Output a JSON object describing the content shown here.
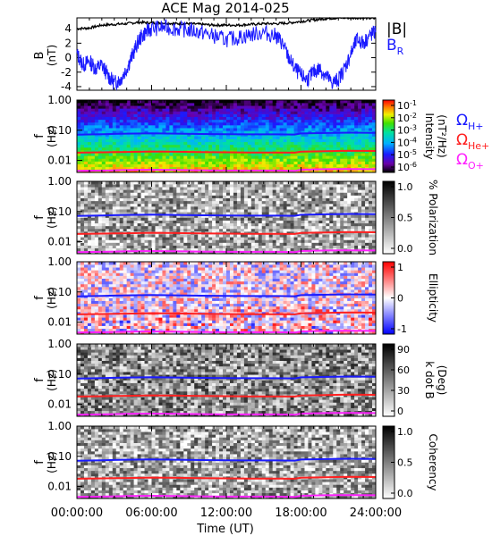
{
  "title": "ACE Mag 2014-025",
  "chart_data": [
    {
      "type": "line",
      "panel": "magnetic-field",
      "ylabel": "B",
      "yunit": "(nT)",
      "ylim": [
        -4.5,
        5.5
      ],
      "yticks": [
        -4,
        -2,
        0,
        2,
        4
      ],
      "xlim": [
        0,
        24
      ],
      "legend": [
        {
          "label": "|B|",
          "color": "#000000"
        },
        {
          "label": "B",
          "sub": "R",
          "color": "#1a1aff"
        }
      ],
      "series": [
        {
          "name": "|B|",
          "color": "#000000",
          "x": [
            0,
            1,
            2,
            3,
            4,
            5,
            6,
            7,
            8,
            9,
            10,
            11,
            12,
            13,
            14,
            15,
            16,
            17,
            18,
            19,
            20,
            21,
            22,
            23,
            24
          ],
          "values": [
            4.0,
            4.1,
            4.5,
            4.6,
            4.7,
            4.9,
            4.8,
            4.8,
            4.7,
            4.7,
            4.6,
            4.5,
            4.5,
            4.5,
            4.6,
            4.7,
            4.7,
            4.8,
            5.0,
            5.2,
            5.4,
            5.5,
            5.5,
            5.5,
            5.4
          ]
        },
        {
          "name": "B_R",
          "color": "#1a1aff",
          "x": [
            0,
            0.5,
            1,
            1.5,
            2,
            2.5,
            3,
            3.5,
            4,
            4.5,
            5,
            5.5,
            6,
            7,
            8,
            9,
            10,
            11,
            12,
            13,
            14,
            15,
            16,
            16.5,
            17,
            17.5,
            18,
            18.5,
            19,
            19.5,
            20,
            20.5,
            21,
            21.5,
            22,
            22.5,
            23,
            23.5,
            24
          ],
          "values": [
            0.5,
            -1.0,
            -0.5,
            -1.5,
            -1.0,
            -2.5,
            -3.5,
            -3.0,
            -1.5,
            0.5,
            2.5,
            3.5,
            4.0,
            4.2,
            4.0,
            3.8,
            3.5,
            3.0,
            2.5,
            2.8,
            3.2,
            3.5,
            3.0,
            2.0,
            0.0,
            -1.5,
            -2.5,
            -3.0,
            -2.0,
            -1.5,
            -2.5,
            -3.5,
            -3.0,
            -1.5,
            0.5,
            2.5,
            2.0,
            3.0,
            3.5
          ]
        }
      ]
    },
    {
      "type": "heatmap",
      "panel": "intensity",
      "ylabel": "f",
      "yunit": "(Hz)",
      "yscale": "log",
      "ylim": [
        0.004,
        1.0
      ],
      "yticks": [
        "1.00",
        "0.10",
        "0.01"
      ],
      "colorbar_label": "Intensity",
      "colorbar_unit": "(nT²/Hz)",
      "colorbar_ticks": [
        "10",
        "10",
        "10",
        "10",
        "10",
        "10"
      ],
      "colorbar_exponents": [
        "-1",
        "-2",
        "-3",
        "-4",
        "-5",
        "-6"
      ],
      "colormap": "rainbow",
      "legend": [
        {
          "label": "Ω",
          "sub": "H+",
          "color": "#1a1aff"
        },
        {
          "label": "Ω",
          "sub": "He+",
          "color": "#ff2020"
        },
        {
          "label": "Ω",
          "sub": "O+",
          "color": "#ff20ff"
        }
      ]
    },
    {
      "type": "heatmap",
      "panel": "polarization",
      "ylabel": "f",
      "yunit": "(Hz)",
      "yscale": "log",
      "colorbar_label": "% Polarization",
      "colorbar_ticks": [
        "1.0",
        "0.5",
        "0.0"
      ],
      "colormap": "grayscale"
    },
    {
      "type": "heatmap",
      "panel": "ellipticity",
      "ylabel": "f",
      "yunit": "(Hz)",
      "yscale": "log",
      "colorbar_label": "Ellipticity",
      "colorbar_ticks": [
        "1",
        "0",
        "-1"
      ],
      "colormap": "blue-white-red"
    },
    {
      "type": "heatmap",
      "panel": "k-dot-b",
      "ylabel": "f",
      "yunit": "(Hz)",
      "yscale": "log",
      "colorbar_label": "k dot B",
      "colorbar_unit": "(Deg)",
      "colorbar_ticks": [
        "90",
        "60",
        "30",
        "0"
      ],
      "colormap": "grayscale"
    },
    {
      "type": "heatmap",
      "panel": "coherency",
      "ylabel": "f",
      "yunit": "(Hz)",
      "yscale": "log",
      "colorbar_label": "Coherency",
      "colorbar_ticks": [
        "1.0",
        "0.5",
        "0.0"
      ],
      "colormap": "grayscale"
    }
  ],
  "gyrofrequencies": {
    "hplus": {
      "color": "#1a1aff",
      "x": [
        0,
        2,
        4,
        6,
        8,
        10,
        12,
        14,
        16,
        17.5,
        18,
        20,
        22,
        24
      ],
      "values": [
        0.071,
        0.074,
        0.077,
        0.079,
        0.077,
        0.075,
        0.074,
        0.073,
        0.073,
        0.072,
        0.078,
        0.081,
        0.083,
        0.082
      ]
    },
    "heplus": {
      "color": "#ff2020",
      "x": [
        0,
        2,
        4,
        6,
        8,
        10,
        12,
        14,
        16,
        17.5,
        18,
        20,
        22,
        24
      ],
      "values": [
        0.018,
        0.0185,
        0.019,
        0.0197,
        0.0193,
        0.0188,
        0.0185,
        0.0183,
        0.0183,
        0.018,
        0.0195,
        0.0203,
        0.021,
        0.0205
      ]
    },
    "oplus": {
      "color": "#ff20ff",
      "x": [
        0,
        2,
        4,
        6,
        8,
        10,
        12,
        14,
        16,
        17.5,
        18,
        20,
        22,
        24
      ],
      "values": [
        0.0045,
        0.0046,
        0.0048,
        0.0049,
        0.0048,
        0.0047,
        0.0046,
        0.0046,
        0.0046,
        0.0045,
        0.0049,
        0.0051,
        0.0052,
        0.0051
      ]
    }
  },
  "xaxis": {
    "label": "Time (UT)",
    "ticks": [
      "00:00:00",
      "06:00:00",
      "12:00:00",
      "18:00:00",
      "24:00:00"
    ],
    "range": [
      0,
      24
    ]
  }
}
